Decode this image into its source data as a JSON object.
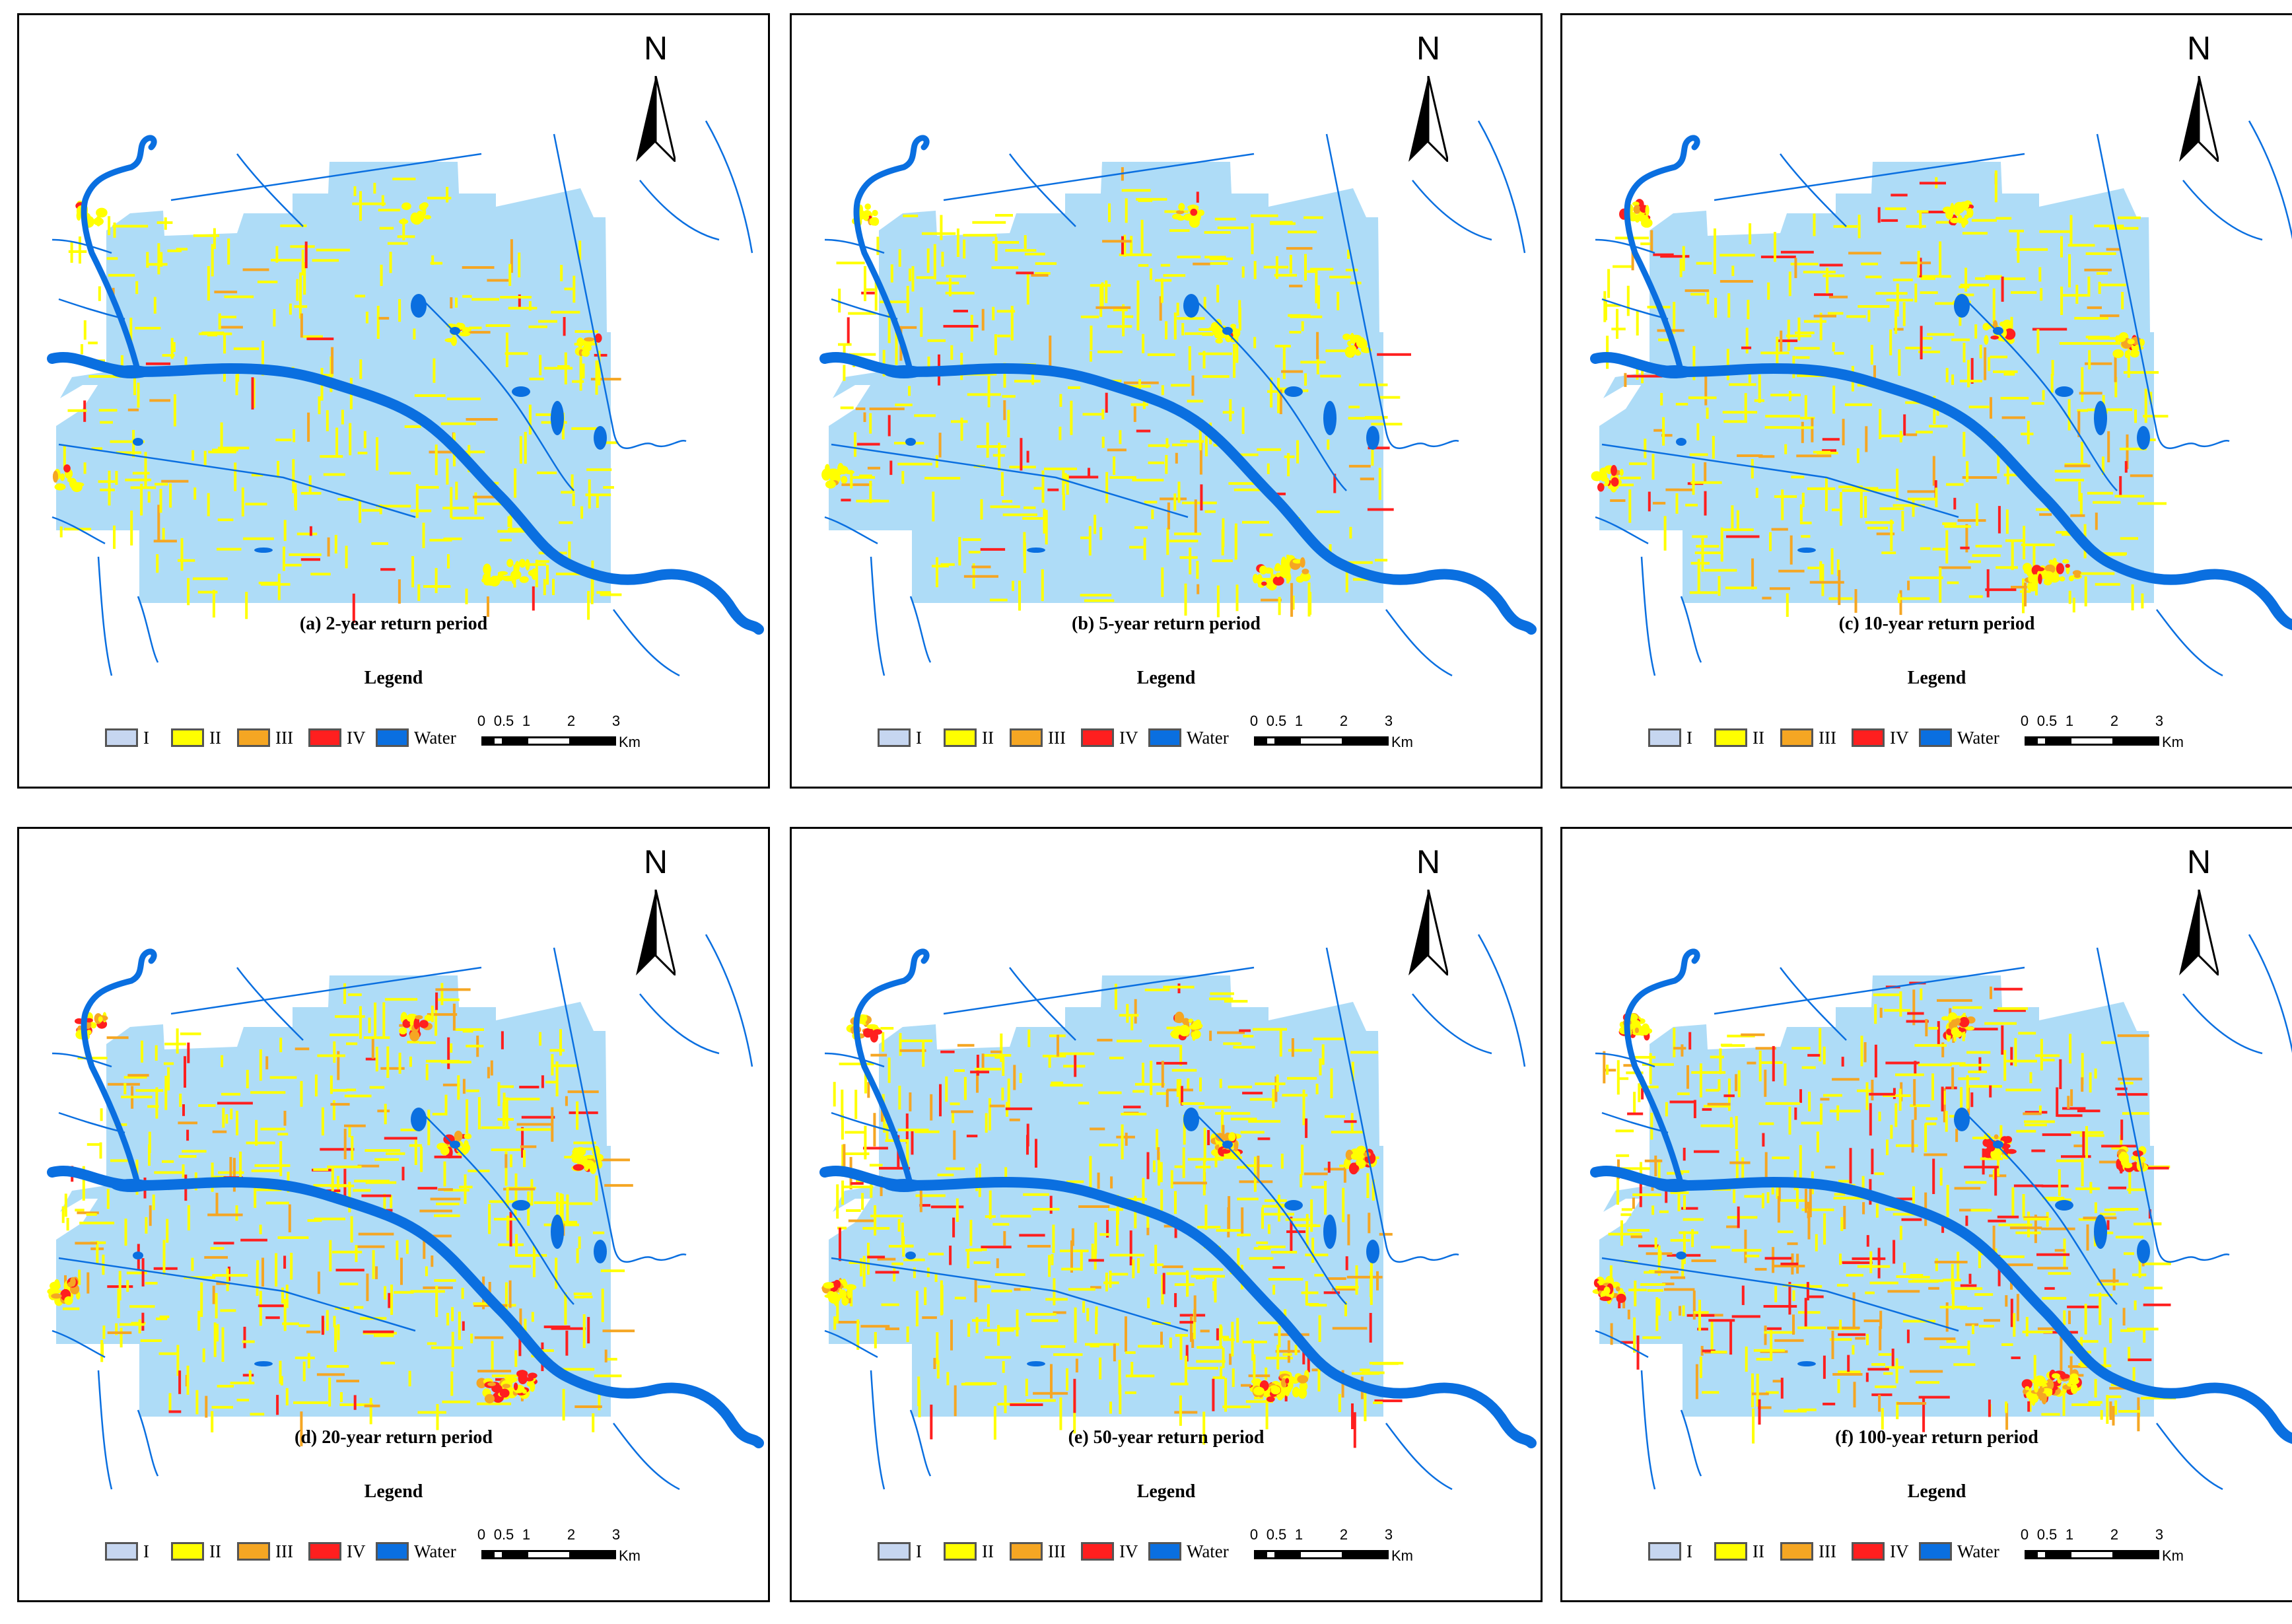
{
  "colors": {
    "zone": "#aedcf7",
    "water": "#0a6fe0",
    "class_I": "#c6d6f0",
    "class_II": "#ffff00",
    "class_III": "#f5a623",
    "class_IV": "#ff1f1f"
  },
  "north_label": "N",
  "legend": {
    "title": "Legend",
    "items": [
      {
        "label": "I",
        "color": "#c6d6f0"
      },
      {
        "label": "II",
        "color": "#ffff00"
      },
      {
        "label": "III",
        "color": "#f5a623"
      },
      {
        "label": "IV",
        "color": "#ff1f1f"
      },
      {
        "label": "Water",
        "color": "#0a6fe0"
      }
    ]
  },
  "scale_bar": {
    "ticks": [
      "0",
      "0.5",
      "1",
      "2",
      "3"
    ],
    "unit": "Km"
  },
  "panels": [
    {
      "caption": "(a) 2-year return period",
      "intensity": 1
    },
    {
      "caption": "(b) 5-year return period",
      "intensity": 2
    },
    {
      "caption": "(c) 10-year return period",
      "intensity": 3
    },
    {
      "caption": "(d) 20-year return period",
      "intensity": 4
    },
    {
      "caption": "(e) 50-year return period",
      "intensity": 5
    },
    {
      "caption": "(f) 100-year return period",
      "intensity": 6
    }
  ]
}
